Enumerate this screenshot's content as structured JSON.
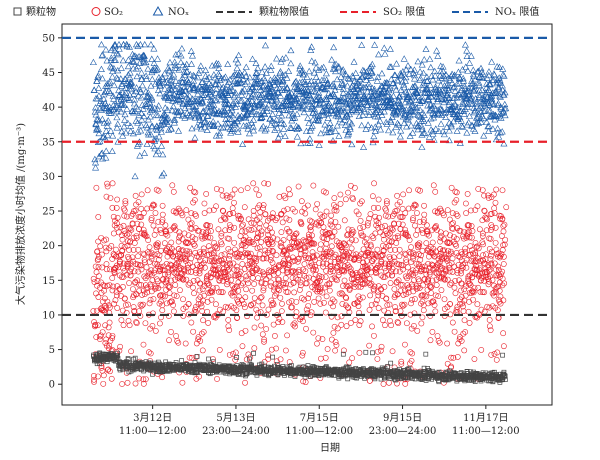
{
  "chart_data": {
    "type": "scatter",
    "ylabel": "大气污染物排放浓度小时均值 /(mg·m⁻³)",
    "xlabel": "日期",
    "ylim": [
      -3,
      52
    ],
    "yticks": [
      0,
      5,
      10,
      15,
      20,
      25,
      30,
      35,
      40,
      45,
      50
    ],
    "x_ticks": [
      {
        "pos": 0.185,
        "line1": "3月12日",
        "line2": "11:00—12:00"
      },
      {
        "pos": 0.355,
        "line1": "5月13日",
        "line2": "23:00—24:00"
      },
      {
        "pos": 0.525,
        "line1": "7月15日",
        "line2": "11:00—12:00"
      },
      {
        "pos": 0.695,
        "line1": "9月15日",
        "line2": "23:00—24:00"
      },
      {
        "pos": 0.865,
        "line1": "11月17日",
        "line2": "11:00—12:00"
      }
    ],
    "legend": {
      "placement": "top",
      "items": [
        {
          "label": "颗粒物",
          "kind": "square",
          "color": "#444444"
        },
        {
          "label": "SO₂",
          "kind": "circle",
          "color": "#e8202a"
        },
        {
          "label": "NOₓ",
          "kind": "triangle",
          "color": "#1a5aa8"
        },
        {
          "label": "颗粒物限值",
          "kind": "dash",
          "color": "#333333"
        },
        {
          "label": "SO₂ 限值",
          "kind": "dash",
          "color": "#e8202a"
        },
        {
          "label": "NOₓ 限值",
          "kind": "dash",
          "color": "#1a5aa8"
        }
      ]
    },
    "limits": [
      {
        "name": "颗粒物限值",
        "value": 10,
        "color": "#333333"
      },
      {
        "name": "SO₂ 限值",
        "value": 35,
        "color": "#e8202a"
      },
      {
        "name": "NOₓ 限值",
        "value": 50,
        "color": "#1a5aa8"
      }
    ],
    "series": [
      {
        "name": "颗粒物",
        "marker": "square",
        "color": "#444444",
        "typical_range": [
          0.5,
          3.5
        ],
        "mean_trend": [
          2.8,
          1.0
        ]
      },
      {
        "name": "SO₂",
        "marker": "circle",
        "color": "#e8202a",
        "typical_range": [
          0,
          28
        ],
        "mean": 18
      },
      {
        "name": "NOₓ",
        "marker": "triangle",
        "color": "#1a5aa8",
        "typical_range": [
          30,
          47
        ],
        "mean": 41
      }
    ]
  }
}
